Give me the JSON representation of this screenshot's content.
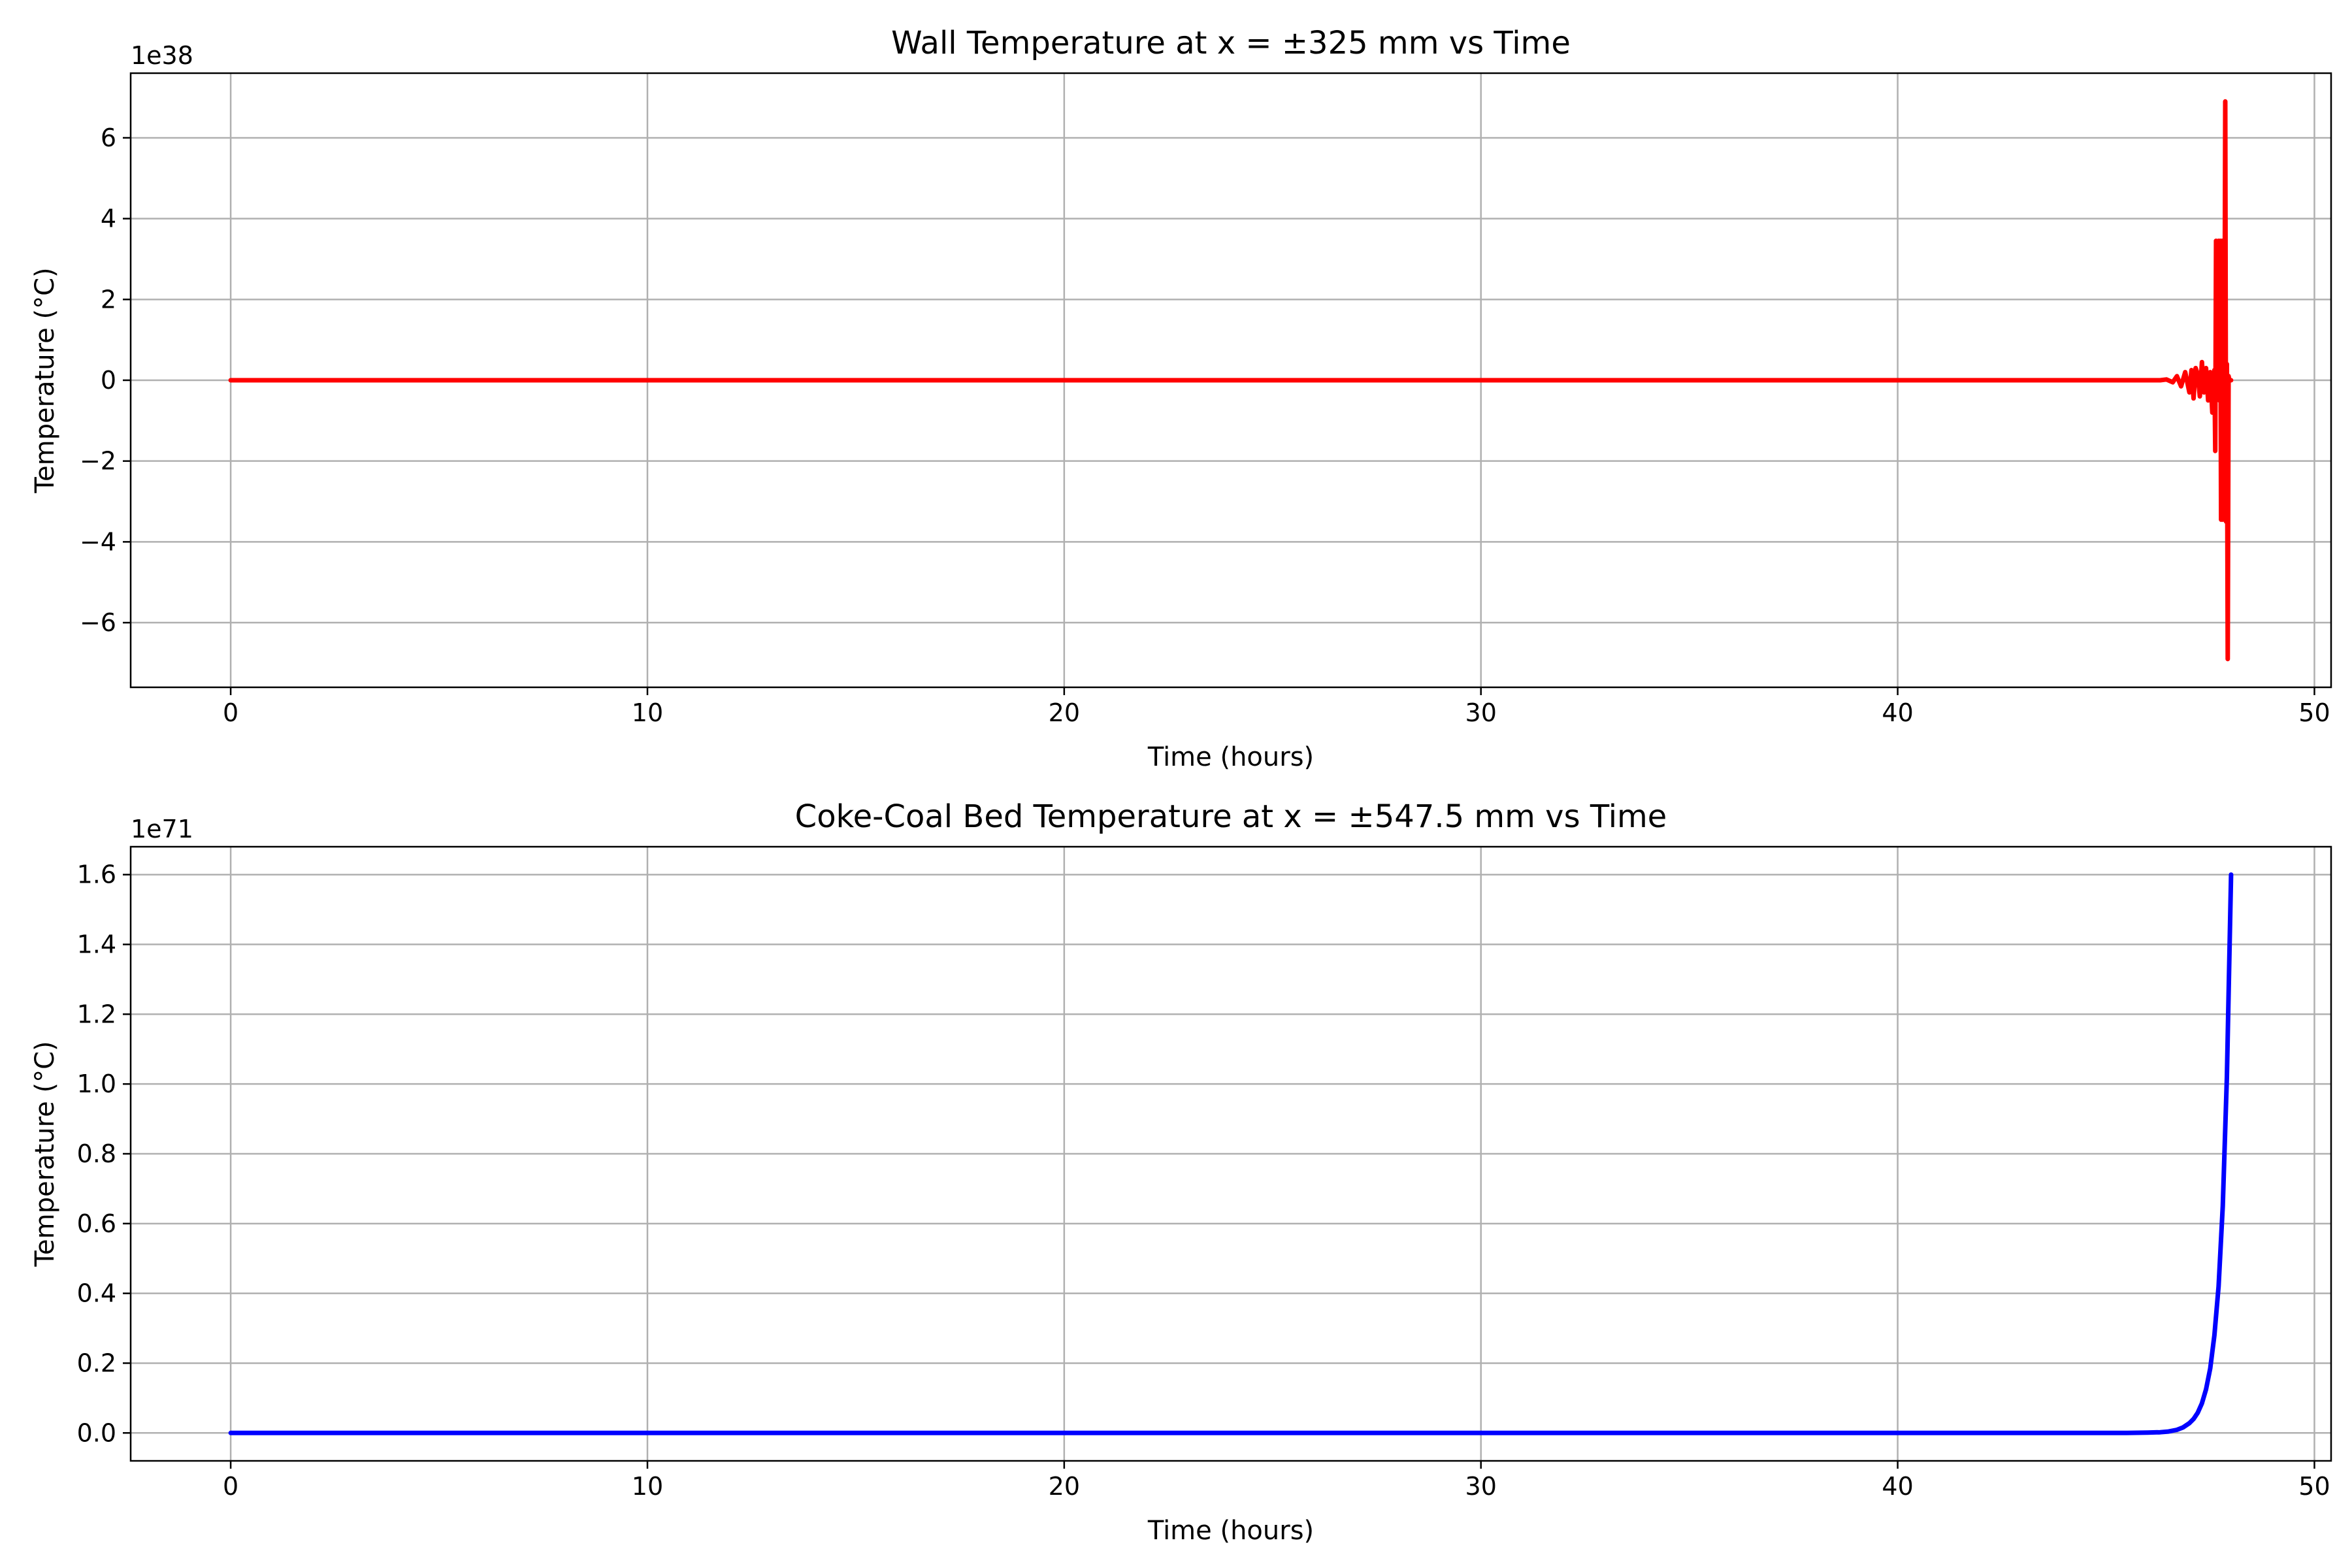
{
  "chart_data": [
    {
      "type": "line",
      "title": "Wall Temperature at x = ±325 mm vs Time",
      "xlabel": "Time (hours)",
      "ylabel": "Temperature (°C)",
      "offset_label": "1e38",
      "xlim": [
        -2.4,
        50.4
      ],
      "ylim": [
        -7.6,
        7.6
      ],
      "xticks": [
        0,
        10,
        20,
        30,
        40,
        50
      ],
      "xtick_labels": [
        "0",
        "10",
        "20",
        "30",
        "40",
        "50"
      ],
      "yticks": [
        -6,
        -4,
        -2,
        0,
        2,
        4,
        6
      ],
      "ytick_labels": [
        "−6",
        "−4",
        "−2",
        "0",
        "2",
        "4",
        "6"
      ],
      "grid": true,
      "legend": "none",
      "color": "#ff0000",
      "series": [
        {
          "x": [
            0,
            46.0,
            46.3,
            46.45,
            46.6,
            46.7,
            46.8,
            46.9,
            47.0,
            47.05,
            47.1,
            47.15,
            47.2,
            47.25,
            47.3,
            47.35,
            47.4,
            47.45,
            47.5,
            47.55,
            47.6,
            47.62,
            47.64,
            47.66,
            47.7,
            47.72,
            47.74,
            47.76,
            47.78,
            47.8,
            47.82,
            47.84,
            47.86,
            47.88,
            47.9,
            47.92,
            47.94,
            47.96,
            47.98,
            48.0
          ],
          "y": [
            0,
            0,
            0,
            0.02,
            -0.05,
            0.1,
            -0.15,
            0.2,
            -0.3,
            0.25,
            -0.45,
            0.3,
            0.15,
            -0.4,
            0.45,
            -0.3,
            0.3,
            -0.5,
            0.2,
            -0.8,
            0.25,
            -1.75,
            3.45,
            -0.4,
            3.45,
            -0.5,
            3.45,
            -3.45,
            3.45,
            -3.45,
            3.45,
            -0.6,
            6.9,
            -3.5,
            0.4,
            -6.9,
            0.1,
            0.0,
            0.0,
            0.0
          ]
        }
      ]
    },
    {
      "type": "line",
      "title": "Coke-Coal Bed Temperature at x = ±547.5 mm vs Time",
      "xlabel": "Time (hours)",
      "ylabel": "Temperature (°C)",
      "offset_label": "1e71",
      "xlim": [
        -2.4,
        50.4
      ],
      "ylim": [
        -0.08,
        1.68
      ],
      "xticks": [
        0,
        10,
        20,
        30,
        40,
        50
      ],
      "xtick_labels": [
        "0",
        "10",
        "20",
        "30",
        "40",
        "50"
      ],
      "yticks": [
        0.0,
        0.2,
        0.4,
        0.6,
        0.8,
        1.0,
        1.2,
        1.4,
        1.6
      ],
      "ytick_labels": [
        "0.0",
        "0.2",
        "0.4",
        "0.6",
        "0.8",
        "1.0",
        "1.2",
        "1.4",
        "1.6"
      ],
      "grid": true,
      "legend": "none",
      "color": "#0000ff",
      "series": [
        {
          "x": [
            0,
            45.5,
            46.0,
            46.3,
            46.5,
            46.7,
            46.85,
            47.0,
            47.1,
            47.2,
            47.3,
            47.4,
            47.5,
            47.6,
            47.7,
            47.8,
            47.9,
            48.0
          ],
          "y": [
            0,
            0,
            0.001,
            0.002,
            0.004,
            0.009,
            0.016,
            0.028,
            0.04,
            0.058,
            0.085,
            0.125,
            0.185,
            0.28,
            0.42,
            0.65,
            1.02,
            1.6
          ]
        }
      ]
    }
  ]
}
